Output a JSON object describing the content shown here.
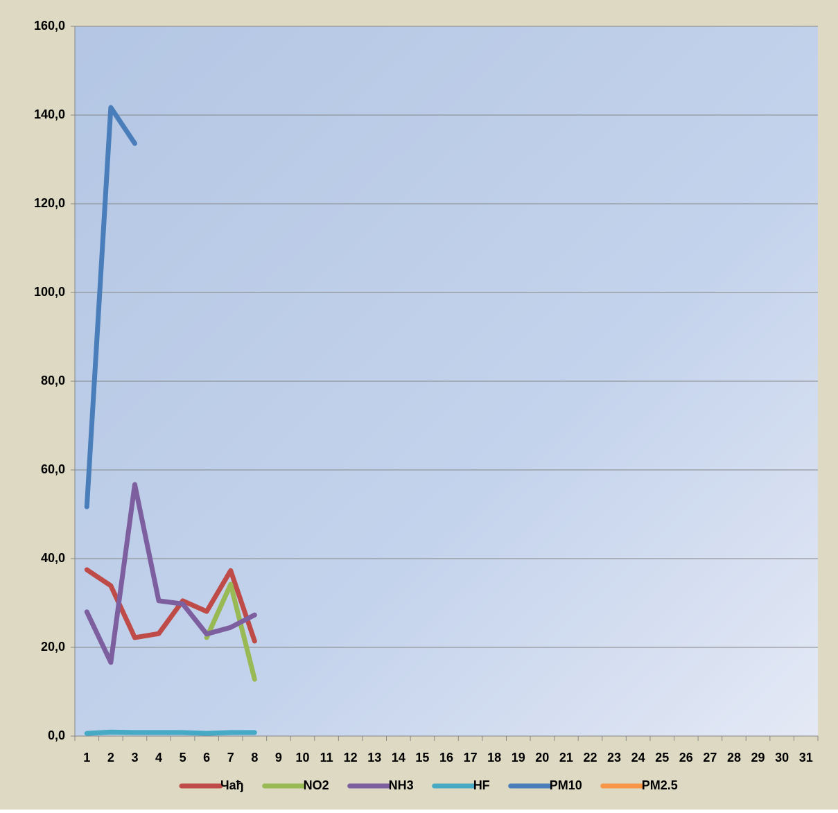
{
  "chart_data": {
    "type": "line",
    "categories": [
      "1",
      "2",
      "3",
      "4",
      "5",
      "6",
      "7",
      "8",
      "9",
      "10",
      "11",
      "12",
      "13",
      "14",
      "15",
      "16",
      "17",
      "18",
      "19",
      "20",
      "21",
      "22",
      "23",
      "24",
      "25",
      "26",
      "27",
      "28",
      "29",
      "30",
      "31"
    ],
    "series": [
      {
        "name": "Чађ",
        "color": "#be4b48",
        "values": [
          37.5,
          33.9,
          22.2,
          23.1,
          30.5,
          28.1,
          37.3,
          21.4,
          null,
          null,
          null,
          null,
          null,
          null,
          null,
          null,
          null,
          null,
          null,
          null,
          null,
          null,
          null,
          null,
          null,
          null,
          null,
          null,
          null,
          null,
          null
        ]
      },
      {
        "name": "NO2",
        "color": "#98b954",
        "values": [
          null,
          null,
          null,
          null,
          null,
          22.2,
          34.2,
          12.8,
          null,
          null,
          null,
          null,
          null,
          null,
          null,
          null,
          null,
          null,
          null,
          null,
          null,
          null,
          null,
          null,
          null,
          null,
          null,
          null,
          null,
          null,
          null
        ]
      },
      {
        "name": "NH3",
        "color": "#7d5fa0",
        "values": [
          28.0,
          16.6,
          56.7,
          30.5,
          29.8,
          23.0,
          24.5,
          27.3,
          null,
          null,
          null,
          null,
          null,
          null,
          null,
          null,
          null,
          null,
          null,
          null,
          null,
          null,
          null,
          null,
          null,
          null,
          null,
          null,
          null,
          null,
          null
        ]
      },
      {
        "name": "HF",
        "color": "#46aac5",
        "values": [
          0.6,
          0.9,
          0.8,
          0.8,
          0.8,
          0.6,
          0.8,
          0.8,
          null,
          null,
          null,
          null,
          null,
          null,
          null,
          null,
          null,
          null,
          null,
          null,
          null,
          null,
          null,
          null,
          null,
          null,
          null,
          null,
          null,
          null,
          null
        ]
      },
      {
        "name": "PM10",
        "color": "#4a7ebb",
        "values": [
          51.7,
          141.7,
          133.6,
          null,
          null,
          null,
          null,
          null,
          null,
          null,
          null,
          null,
          null,
          null,
          null,
          null,
          null,
          null,
          null,
          null,
          null,
          null,
          null,
          null,
          null,
          null,
          null,
          null,
          null,
          null,
          null
        ]
      },
      {
        "name": "PM2.5",
        "color": "#f79646",
        "values": [
          null,
          null,
          null,
          null,
          null,
          null,
          null,
          null,
          null,
          null,
          null,
          null,
          null,
          null,
          null,
          null,
          null,
          null,
          null,
          null,
          null,
          null,
          null,
          null,
          null,
          null,
          null,
          null,
          null,
          null,
          null
        ]
      }
    ],
    "ylim": [
      0,
      160
    ],
    "yticks": [
      {
        "value": 0,
        "label": "0,0"
      },
      {
        "value": 20,
        "label": "20,0"
      },
      {
        "value": 40,
        "label": "40,0"
      },
      {
        "value": 60,
        "label": "60,0"
      },
      {
        "value": 80,
        "label": "80,0"
      },
      {
        "value": 100,
        "label": "100,0"
      },
      {
        "value": 120,
        "label": "120,0"
      },
      {
        "value": 140,
        "label": "140,0"
      },
      {
        "value": 160,
        "label": "160,0"
      }
    ],
    "grid": true,
    "legend": "bottom"
  }
}
